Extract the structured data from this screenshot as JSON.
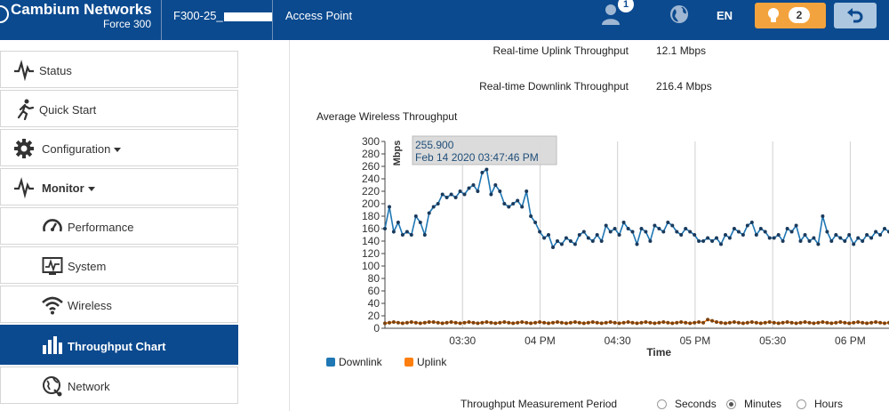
{
  "header": {
    "brand": "Cambium Networks",
    "model": "Force 300",
    "device_name": "F300-25_",
    "mode": "Access Point",
    "user_badge": "1",
    "language": "EN",
    "alerts_count": "2"
  },
  "sidebar": {
    "items": [
      {
        "label": "Status",
        "icon": "pulse-icon"
      },
      {
        "label": "Quick Start",
        "icon": "runner-icon"
      },
      {
        "label": "Configuration",
        "icon": "gear-icon"
      },
      {
        "label": "Monitor",
        "icon": "pulse-icon"
      },
      {
        "label": "Performance",
        "icon": "gauge-icon"
      },
      {
        "label": "System",
        "icon": "system-chart-icon"
      },
      {
        "label": "Wireless",
        "icon": "wifi-icon"
      },
      {
        "label": "Throughput Chart",
        "icon": "bar-chart-icon"
      },
      {
        "label": "Network",
        "icon": "globe-network-icon"
      }
    ]
  },
  "stats": {
    "uplink_label": "Real-time Uplink Throughput",
    "uplink_value": "12.1 Mbps",
    "downlink_label": "Real-time Downlink Throughput",
    "downlink_value": "216.4 Mbps"
  },
  "chart_data": {
    "type": "line",
    "title": "Average Wireless Throughput",
    "ylabel": "Mbps",
    "xlabel": "Time",
    "ylim": [
      0,
      300
    ],
    "xlim_minutes": [
      0,
      195
    ],
    "yticks": [
      0,
      20,
      40,
      60,
      80,
      100,
      120,
      140,
      160,
      180,
      200,
      220,
      240,
      260,
      280,
      300
    ],
    "xticks": [
      {
        "label": "03:30",
        "minute": 30
      },
      {
        "label": "04 PM",
        "minute": 60
      },
      {
        "label": "04:30",
        "minute": 90
      },
      {
        "label": "05 PM",
        "minute": 120
      },
      {
        "label": "05:30",
        "minute": 150
      },
      {
        "label": "06 PM",
        "minute": 180
      }
    ],
    "time_start": "03:00 PM (x minute 0)",
    "tooltip": {
      "value": "255.900",
      "time": "Feb 14 2020 03:47:46 PM"
    },
    "series": [
      {
        "name": "Downlink",
        "color": "#1f77b4",
        "values": [
          160,
          195,
          155,
          170,
          150,
          155,
          150,
          180,
          170,
          150,
          185,
          195,
          200,
          215,
          210,
          215,
          210,
          220,
          215,
          225,
          230,
          220,
          250,
          255,
          215,
          230,
          220,
          200,
          195,
          200,
          205,
          195,
          220,
          180,
          170,
          155,
          145,
          150,
          130,
          140,
          135,
          145,
          140,
          135,
          150,
          155,
          145,
          140,
          150,
          140,
          165,
          155,
          160,
          150,
          170,
          160,
          155,
          135,
          160,
          155,
          140,
          165,
          160,
          155,
          170,
          165,
          155,
          150,
          160,
          155,
          150,
          140,
          140,
          145,
          140,
          145,
          135,
          150,
          145,
          160,
          155,
          150,
          165,
          170,
          150,
          160,
          155,
          145,
          145,
          150,
          140,
          160,
          155,
          165,
          140,
          150,
          140,
          145,
          135,
          180,
          155,
          140,
          150,
          145,
          140,
          150,
          135,
          145,
          140,
          150,
          145,
          155,
          150,
          160,
          155
        ]
      },
      {
        "name": "Uplink",
        "color": "#ff7f0e",
        "values": [
          8,
          9,
          10,
          9,
          8,
          9,
          10,
          9,
          8,
          9,
          10,
          10,
          9,
          8,
          9,
          10,
          9,
          8,
          9,
          10,
          9,
          8,
          9,
          10,
          9,
          8,
          9,
          10,
          9,
          8,
          9,
          10,
          9,
          8,
          9,
          10,
          9,
          8,
          9,
          10,
          9,
          8,
          9,
          10,
          9,
          8,
          9,
          10,
          9,
          8,
          9,
          10,
          9,
          8,
          9,
          10,
          9,
          8,
          9,
          10,
          9,
          8,
          9,
          10,
          9,
          8,
          9,
          10,
          9,
          8,
          9,
          10,
          9,
          14,
          12,
          10,
          9,
          8,
          9,
          10,
          9,
          8,
          9,
          10,
          9,
          8,
          9,
          10,
          9,
          8,
          9,
          10,
          9,
          8,
          9,
          10,
          9,
          8,
          9,
          10,
          9,
          8,
          9,
          10,
          9,
          8,
          9,
          10,
          9,
          8,
          9,
          10,
          9,
          8,
          9
        ]
      }
    ]
  },
  "legend": {
    "downlink": "Downlink",
    "uplink": "Uplink"
  },
  "period": {
    "label": "Throughput Measurement Period",
    "options": [
      "Seconds",
      "Minutes",
      "Hours"
    ],
    "selected": "Minutes"
  }
}
